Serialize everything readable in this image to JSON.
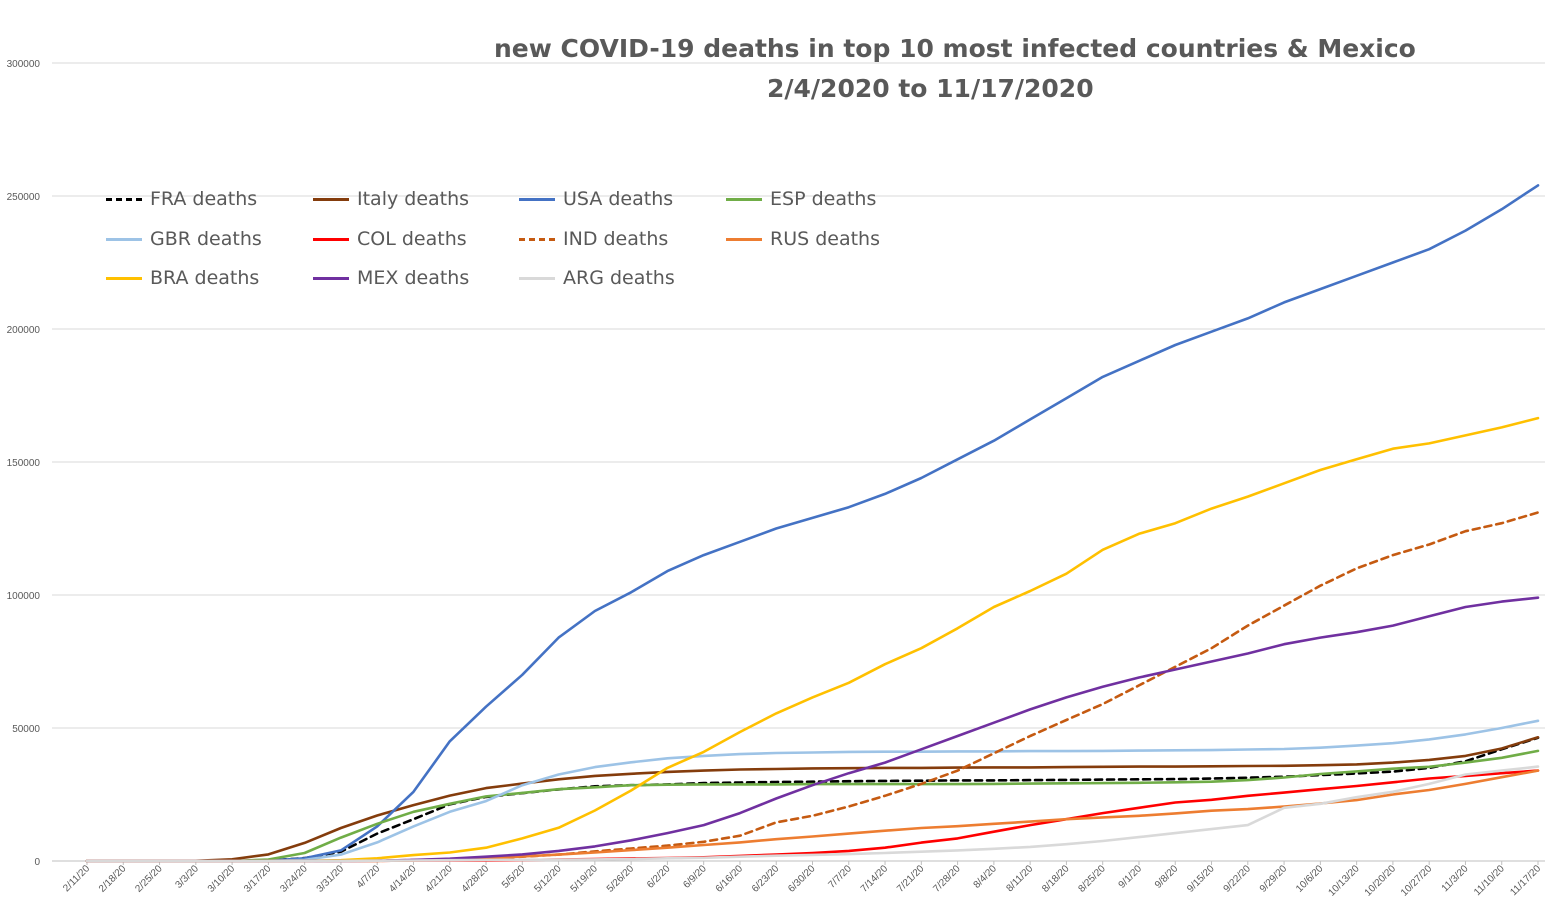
{
  "chart_data": {
    "type": "line",
    "title": "new COVID-19 deaths in top 10 most infected countries & Mexico",
    "subtitle": "2/4/2020 to 11/17/2020",
    "xlabel": "",
    "ylabel": "",
    "x_tick_labels": [
      "2/11/20",
      "2/18/20",
      "2/25/20",
      "3/3/20",
      "3/10/20",
      "3/17/20",
      "3/24/20",
      "3/31/20",
      "4/7/20",
      "4/14/20",
      "4/21/20",
      "4/28/20",
      "5/5/20",
      "5/12/20",
      "5/19/20",
      "5/26/20",
      "6/2/20",
      "6/9/20",
      "6/16/20",
      "6/23/20",
      "6/30/20",
      "7/7/20",
      "7/14/20",
      "7/21/20",
      "7/28/20",
      "8/4/20",
      "8/11/20",
      "8/18/20",
      "8/25/20",
      "9/1/20",
      "9/8/20",
      "9/15/20",
      "9/22/20",
      "9/29/20",
      "10/6/20",
      "10/13/20",
      "10/20/20",
      "10/27/20",
      "11/3/20",
      "11/10/20",
      "11/17/20"
    ],
    "y_tick_labels": [
      "0",
      "50000",
      "100000",
      "150000",
      "200000",
      "250000",
      "300000"
    ],
    "ylim": [
      0,
      300000
    ],
    "grid": "horizontal",
    "legend_position": "top-left",
    "x_note": "x values are weekly dates matching the tick labels (2/11/20 through 11/17/20)",
    "series": [
      {
        "name": "FRA deaths",
        "color": "#000000",
        "dash": "dashed",
        "values": [
          0,
          0,
          0,
          0,
          0,
          175,
          1100,
          3500,
          10300,
          15700,
          21300,
          24100,
          25500,
          26900,
          28100,
          28500,
          28800,
          29300,
          29500,
          29700,
          29800,
          30000,
          30100,
          30200,
          30300,
          30300,
          30400,
          30500,
          30600,
          30700,
          30800,
          31000,
          31300,
          31700,
          32300,
          32900,
          33600,
          35000,
          37500,
          42000,
          46300
        ]
      },
      {
        "name": "Italy deaths",
        "color": "#843C0C",
        "dash": "solid",
        "values": [
          0,
          0,
          0,
          80,
          630,
          2500,
          6800,
          12400,
          17100,
          21000,
          24600,
          27400,
          29100,
          30700,
          32000,
          32800,
          33500,
          34000,
          34400,
          34600,
          34800,
          34900,
          35000,
          35000,
          35100,
          35200,
          35200,
          35300,
          35400,
          35500,
          35500,
          35600,
          35700,
          35800,
          36000,
          36300,
          37000,
          38000,
          39500,
          42300,
          46500
        ]
      },
      {
        "name": "USA deaths",
        "color": "#4472C4",
        "dash": "solid",
        "values": [
          0,
          0,
          0,
          0,
          0,
          100,
          1000,
          4000,
          13000,
          26000,
          45000,
          58000,
          70000,
          84000,
          94000,
          101000,
          109000,
          115000,
          120000,
          125000,
          129000,
          133000,
          138000,
          144000,
          151000,
          158000,
          166000,
          174000,
          182000,
          188000,
          194000,
          199000,
          204000,
          210000,
          215000,
          220000,
          225000,
          230000,
          237000,
          245000,
          254000
        ]
      },
      {
        "name": "ESP deaths",
        "color": "#70AD47",
        "dash": "solid",
        "values": [
          0,
          0,
          0,
          0,
          0,
          550,
          3000,
          8800,
          14000,
          18500,
          21500,
          24300,
          25600,
          27000,
          27700,
          28500,
          28700,
          28800,
          28800,
          28800,
          28900,
          28900,
          28900,
          28900,
          28900,
          29000,
          29100,
          29200,
          29300,
          29400,
          29600,
          29800,
          30400,
          31400,
          32700,
          33700,
          34700,
          35400,
          37000,
          38800,
          41400
        ]
      },
      {
        "name": "GBR deaths",
        "color": "#9DC3E6",
        "dash": "solid",
        "values": [
          0,
          0,
          0,
          0,
          0,
          70,
          400,
          2400,
          7000,
          13000,
          18500,
          22500,
          28500,
          32500,
          35300,
          37100,
          38600,
          39500,
          40200,
          40600,
          40800,
          41000,
          41100,
          41100,
          41200,
          41200,
          41300,
          41300,
          41400,
          41500,
          41600,
          41700,
          41900,
          42100,
          42600,
          43400,
          44300,
          45700,
          47600,
          50000,
          52700
        ]
      },
      {
        "name": "COL deaths",
        "color": "#FF0000",
        "dash": "solid",
        "values": [
          0,
          0,
          0,
          0,
          0,
          0,
          0,
          20,
          80,
          170,
          200,
          240,
          360,
          510,
          750,
          960,
          1100,
          1400,
          1900,
          2400,
          3000,
          3800,
          5000,
          6900,
          8500,
          11000,
          13500,
          15700,
          18000,
          20000,
          22000,
          23000,
          24500,
          25700,
          27000,
          28200,
          29600,
          31000,
          32000,
          33000,
          34000
        ]
      },
      {
        "name": "IND deaths",
        "color": "#C55A11",
        "dash": "dashed",
        "values": [
          0,
          0,
          0,
          0,
          0,
          0,
          10,
          35,
          150,
          360,
          640,
          940,
          1600,
          2400,
          3600,
          4700,
          5800,
          7200,
          9500,
          14500,
          17000,
          20500,
          24500,
          29000,
          34000,
          40500,
          47000,
          53000,
          59000,
          66000,
          73000,
          80000,
          88500,
          96000,
          103500,
          110000,
          115000,
          119000,
          124000,
          127000,
          131000
        ]
      },
      {
        "name": "RUS deaths",
        "color": "#ED7D31",
        "dash": "solid",
        "values": [
          0,
          0,
          0,
          0,
          0,
          0,
          0,
          10,
          50,
          200,
          500,
          1000,
          1700,
          2400,
          3200,
          4100,
          5000,
          6000,
          7000,
          8200,
          9200,
          10300,
          11400,
          12400,
          13100,
          14000,
          14800,
          15700,
          16400,
          17000,
          17900,
          18900,
          19500,
          20500,
          21600,
          22900,
          25000,
          26700,
          29000,
          31500,
          34000
        ]
      },
      {
        "name": "BRA deaths",
        "color": "#FFC000",
        "dash": "solid",
        "values": [
          0,
          0,
          0,
          0,
          0,
          0,
          30,
          300,
          1000,
          2200,
          3200,
          5000,
          8500,
          12500,
          19000,
          26500,
          35000,
          41000,
          48500,
          55500,
          61500,
          67000,
          74000,
          80000,
          87500,
          95500,
          101500,
          108000,
          117000,
          123000,
          127000,
          132500,
          137000,
          142000,
          147000,
          151000,
          155000,
          157000,
          160000,
          163000,
          166500
        ]
      },
      {
        "name": "MEX deaths",
        "color": "#7030A0",
        "dash": "solid",
        "values": [
          0,
          0,
          0,
          0,
          0,
          0,
          5,
          30,
          120,
          400,
          860,
          1600,
          2500,
          3800,
          5500,
          7800,
          10500,
          13500,
          18000,
          23500,
          28500,
          33000,
          37000,
          42000,
          47000,
          52000,
          57000,
          61500,
          65500,
          69000,
          72000,
          75000,
          78000,
          81500,
          84000,
          86000,
          88500,
          92000,
          95500,
          97500,
          99000
        ]
      },
      {
        "name": "ARG deaths",
        "color": "#D9D9D9",
        "dash": "solid",
        "values": [
          0,
          0,
          0,
          0,
          0,
          0,
          0,
          20,
          100,
          200,
          300,
          400,
          450,
          500,
          600,
          750,
          1000,
          1200,
          1600,
          2000,
          2300,
          2600,
          3000,
          3500,
          4000,
          4600,
          5300,
          6300,
          7500,
          9000,
          10500,
          12000,
          13500,
          20000,
          21500,
          24000,
          26000,
          29000,
          32500,
          34000,
          35500
        ]
      }
    ]
  }
}
